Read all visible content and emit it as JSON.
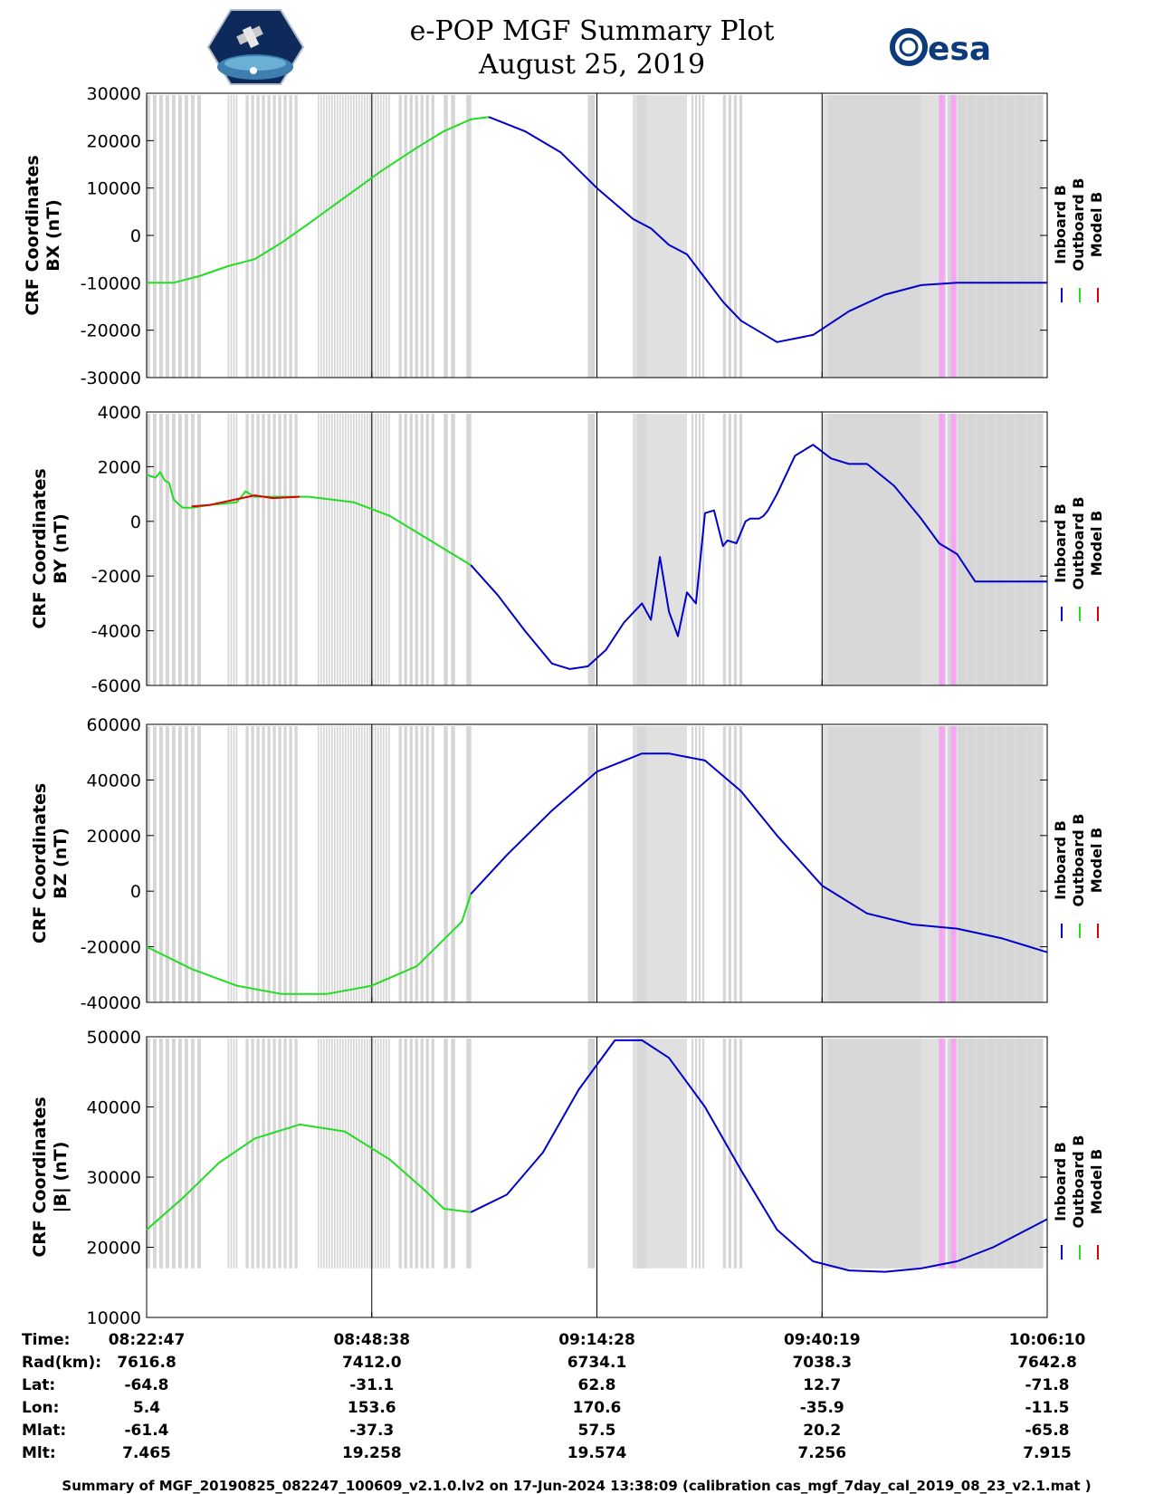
{
  "header": {
    "title": "e-POP MGF Summary Plot",
    "date": "August 25, 2019",
    "left_logo": "cassiope-logo",
    "right_logo_text": "esa"
  },
  "colors": {
    "inboard": "#0000cc",
    "outboard": "#22dd22",
    "model": "#dd0000",
    "gap_gray": "#d6d6d6",
    "gap_pink": "#f4a6f4"
  },
  "legend": [
    "Inboard B",
    "Outboard B",
    "Model B"
  ],
  "chart_data": [
    {
      "type": "line",
      "id": "bx",
      "ylabel": [
        "CRF Coordinates",
        "BX (nT)"
      ],
      "ylim": [
        -30000,
        30000
      ],
      "yticks": [
        30000,
        20000,
        10000,
        0,
        -10000,
        -20000,
        -30000
      ],
      "xlim": [
        0,
        1
      ],
      "series": [
        {
          "name": "Outboard B",
          "x": [
            0.0,
            0.03,
            0.06,
            0.09,
            0.12,
            0.15,
            0.18,
            0.22,
            0.26,
            0.3,
            0.33,
            0.36,
            0.38
          ],
          "y": [
            -10000,
            -10000,
            -8500,
            -6500,
            -5000,
            -1500,
            2500,
            8000,
            13500,
            18500,
            22000,
            24500,
            25000
          ]
        },
        {
          "name": "Inboard B",
          "x": [
            0.38,
            0.42,
            0.46,
            0.5,
            0.54,
            0.56,
            0.58,
            0.6,
            0.62,
            0.64,
            0.66,
            0.7,
            0.74,
            0.78,
            0.82,
            0.86,
            0.9,
            0.94,
            1.0
          ],
          "y": [
            25000,
            22000,
            17500,
            10000,
            3500,
            1500,
            -2000,
            -4000,
            -9000,
            -14000,
            -18000,
            -22500,
            -21000,
            -16000,
            -12500,
            -10500,
            -10000,
            -10000,
            -10000
          ]
        }
      ]
    },
    {
      "type": "line",
      "id": "by",
      "ylabel": [
        "CRF Coordinates",
        "BY (nT)"
      ],
      "ylim": [
        -6000,
        4000
      ],
      "yticks": [
        4000,
        2000,
        0,
        -2000,
        -4000,
        -6000
      ],
      "xlim": [
        0,
        1
      ],
      "series": [
        {
          "name": "Outboard B",
          "x": [
            0.0,
            0.01,
            0.015,
            0.02,
            0.025,
            0.03,
            0.04,
            0.05,
            0.07,
            0.1,
            0.11,
            0.12,
            0.14,
            0.18,
            0.23,
            0.27,
            0.3,
            0.33,
            0.36
          ],
          "y": [
            1700,
            1600,
            1800,
            1500,
            1400,
            800,
            500,
            500,
            600,
            700,
            1100,
            900,
            900,
            900,
            700,
            200,
            -400,
            -1000,
            -1600
          ]
        },
        {
          "name": "Model B",
          "x": [
            0.05,
            0.07,
            0.12,
            0.14,
            0.17
          ],
          "y": [
            550,
            600,
            950,
            850,
            900
          ]
        },
        {
          "name": "Inboard B",
          "x": [
            0.36,
            0.39,
            0.42,
            0.45,
            0.47,
            0.49,
            0.51,
            0.53,
            0.55,
            0.56,
            0.57,
            0.58,
            0.59,
            0.6,
            0.61,
            0.62,
            0.63,
            0.64,
            0.645,
            0.655,
            0.665,
            0.67,
            0.68,
            0.685,
            0.69,
            0.7,
            0.72,
            0.74,
            0.76,
            0.78,
            0.8,
            0.83,
            0.86,
            0.88,
            0.9,
            0.92,
            0.94,
            0.97,
            1.0
          ],
          "y": [
            -1600,
            -2700,
            -4000,
            -5200,
            -5400,
            -5300,
            -4700,
            -3700,
            -3000,
            -3600,
            -1300,
            -3300,
            -4200,
            -2600,
            -3000,
            300,
            400,
            -900,
            -700,
            -800,
            0,
            100,
            100,
            200,
            400,
            1000,
            2400,
            2800,
            2300,
            2100,
            2100,
            1300,
            100,
            -800,
            -1200,
            -2200,
            -2200,
            -2200,
            -2200
          ]
        }
      ]
    },
    {
      "type": "line",
      "id": "bz",
      "ylabel": [
        "CRF Coordinates",
        "BZ (nT)"
      ],
      "ylim": [
        -40000,
        60000
      ],
      "yticks": [
        60000,
        40000,
        20000,
        0,
        -20000,
        -40000
      ],
      "xlim": [
        0,
        1
      ],
      "series": [
        {
          "name": "Outboard B",
          "x": [
            0.0,
            0.05,
            0.1,
            0.15,
            0.2,
            0.25,
            0.3,
            0.35,
            0.36
          ],
          "y": [
            -20000,
            -28000,
            -34000,
            -37000,
            -37000,
            -34000,
            -27000,
            -11000,
            -1000
          ]
        },
        {
          "name": "Inboard B",
          "x": [
            0.36,
            0.4,
            0.45,
            0.5,
            0.55,
            0.58,
            0.62,
            0.66,
            0.7,
            0.75,
            0.8,
            0.85,
            0.9,
            0.95,
            1.0
          ],
          "y": [
            -1000,
            13000,
            29000,
            43000,
            49500,
            49500,
            47000,
            36000,
            20000,
            2000,
            -8000,
            -12000,
            -13500,
            -17000,
            -22000
          ]
        }
      ]
    },
    {
      "type": "line",
      "id": "bmag",
      "ylabel": [
        "CRF Coordinates",
        "|B| (nT)"
      ],
      "ylim": [
        10000,
        50000
      ],
      "yticks": [
        50000,
        40000,
        30000,
        20000,
        10000
      ],
      "xlim": [
        0,
        1
      ],
      "series": [
        {
          "name": "Outboard B",
          "x": [
            0.0,
            0.04,
            0.08,
            0.12,
            0.17,
            0.22,
            0.27,
            0.31,
            0.33,
            0.36
          ],
          "y": [
            22500,
            27000,
            32000,
            35500,
            37500,
            36500,
            32500,
            28000,
            25500,
            25000
          ]
        },
        {
          "name": "Inboard B",
          "x": [
            0.36,
            0.4,
            0.44,
            0.48,
            0.52,
            0.55,
            0.58,
            0.62,
            0.66,
            0.7,
            0.74,
            0.78,
            0.82,
            0.86,
            0.9,
            0.94,
            1.0
          ],
          "y": [
            25000,
            27500,
            33500,
            42500,
            49500,
            49500,
            47000,
            40000,
            31000,
            22500,
            18000,
            16700,
            16500,
            17000,
            18000,
            20000,
            24000
          ]
        }
      ]
    }
  ],
  "ephemeris": {
    "row_labels": [
      "Time:",
      "Rad(km):",
      "Lat:",
      "Lon:",
      "Mlat:",
      "Mlt:"
    ],
    "columns": [
      [
        "08:22:47",
        "7616.8",
        "-64.8",
        "5.4",
        "-61.4",
        "7.465"
      ],
      [
        "08:48:38",
        "7412.0",
        "-31.1",
        "153.6",
        "-37.3",
        "19.258"
      ],
      [
        "09:14:28",
        "6734.1",
        "62.8",
        "170.6",
        "57.5",
        "19.574"
      ],
      [
        "09:40:19",
        "7038.3",
        "12.7",
        "-35.9",
        "20.2",
        "7.256"
      ],
      [
        "10:06:10",
        "7642.8",
        "-71.8",
        "-11.5",
        "-65.8",
        "7.915"
      ]
    ]
  },
  "footer": "Summary of MGF_20190825_082247_100609_v2.1.0.lv2 on 17-Jun-2024 13:38:09 (calibration cas_mgf_7day_cal_2019_08_23_v2.1.mat )"
}
